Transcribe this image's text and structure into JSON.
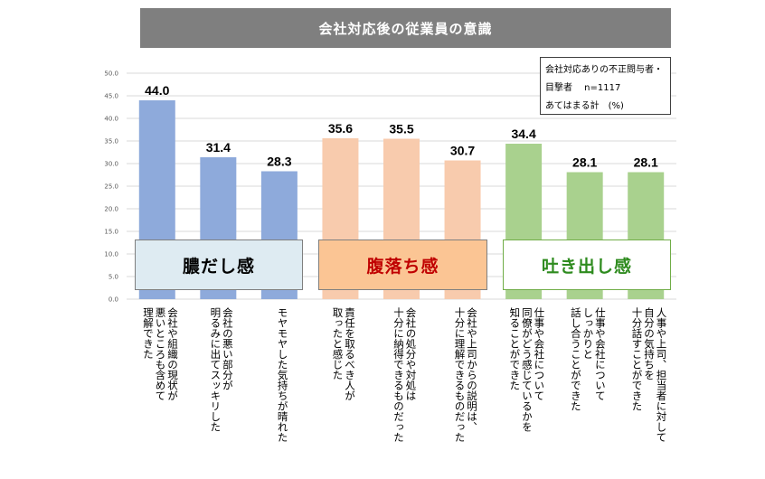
{
  "title": "会社対応後の従業員の意識",
  "note": {
    "lines": [
      "会社対応ありの不正問与者・",
      "目撃者　 n=1117",
      "あてはまる計　(%)"
    ]
  },
  "groups": [
    {
      "label": "膿だし感",
      "bg": "#deebf2",
      "border": "#7f7f7f",
      "color": "#000000"
    },
    {
      "label": "腹落ち感",
      "bg": "#fbc594",
      "border": "#7f7f7f",
      "color": "#c00000"
    },
    {
      "label": "吐き出し感",
      "bg": "#ffffff",
      "border": "#70ad47",
      "color": "#2e8b1e"
    }
  ],
  "chart_data": {
    "type": "bar",
    "ylim": [
      0,
      50
    ],
    "yticks": [
      "0.0",
      "5.0",
      "10.0",
      "15.0",
      "20.0",
      "25.0",
      "30.0",
      "35.0",
      "40.0",
      "45.0",
      "50.0"
    ],
    "grid": true,
    "categories": [
      "会社や組織の現状が\n悪いところも含めて\n理解できた",
      "会社の悪い部分が\n明るみに出てスッキリした",
      "モヤモヤした気持ちが晴れた",
      "責任を取るべき人が\n取ったと感じた",
      "会社の処分や対処は\n十分に納得できるものだった",
      "会社や上司からの説明は、\n十分に理解できるものだった",
      "仕事や会社について\n同僚がどう感じているかを\n知ることができた",
      "仕事や会社について\nしっかりと\n話し合うことができた",
      "人事や上司、担当者に対して\n自分の気持ちを\n十分話すことができた"
    ],
    "values": [
      44.0,
      31.4,
      28.3,
      35.6,
      35.5,
      30.7,
      34.4,
      28.1,
      28.1
    ],
    "value_labels": [
      "44.0",
      "31.4",
      "28.3",
      "35.6",
      "35.5",
      "30.7",
      "34.4",
      "28.1",
      "28.1"
    ],
    "bar_colors": [
      "#8eaadb",
      "#8eaadb",
      "#8eaadb",
      "#f8cbad",
      "#f8cbad",
      "#f8cbad",
      "#a9d18e",
      "#a9d18e",
      "#a9d18e"
    ]
  }
}
